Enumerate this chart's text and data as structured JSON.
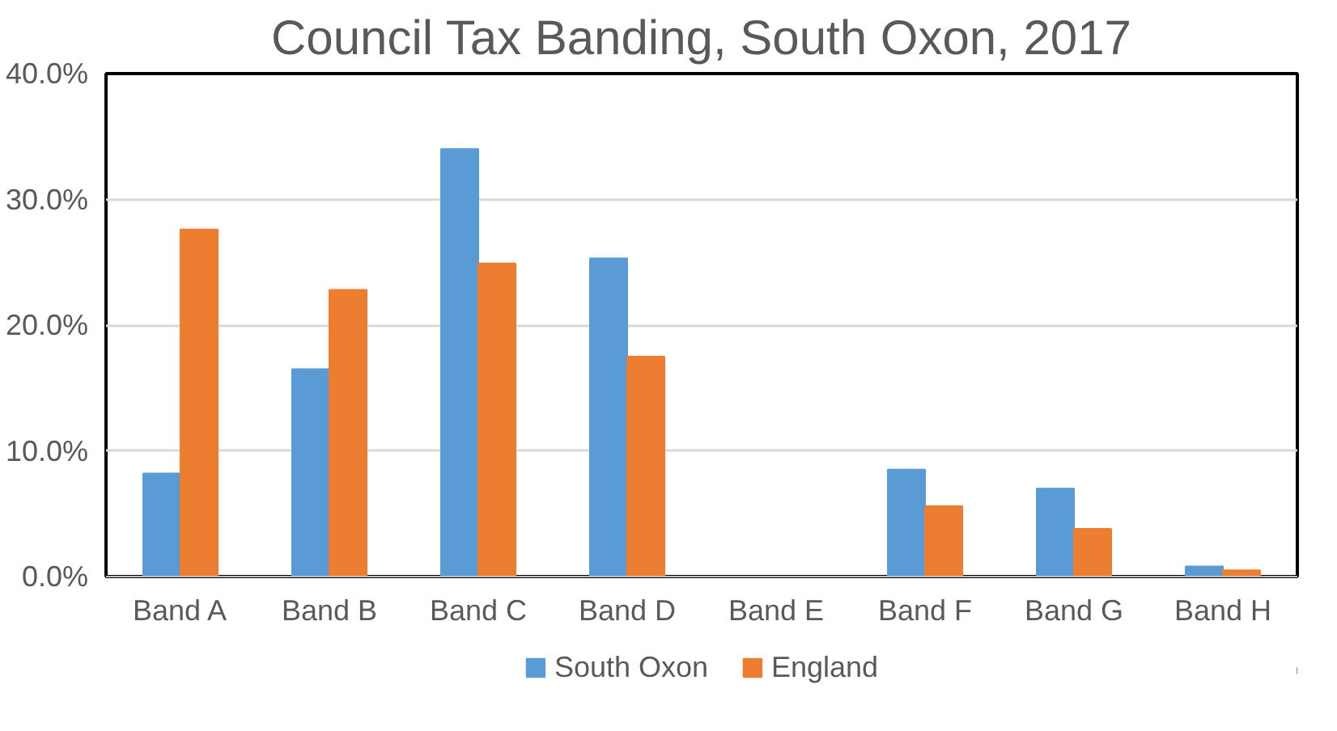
{
  "chart_data": {
    "type": "bar",
    "title": "Council Tax Banding, South Oxon, 2017",
    "categories": [
      "Band A",
      "Band B",
      "Band C",
      "Band D",
      "Band E",
      "Band F",
      "Band G",
      "Band H"
    ],
    "series": [
      {
        "name": "South Oxon",
        "color": "#5b9bd5",
        "values": [
          8.2,
          16.5,
          34.0,
          25.3,
          null,
          8.5,
          7.0,
          0.8
        ]
      },
      {
        "name": "England",
        "color": "#ed7d31",
        "values": [
          27.6,
          22.8,
          24.9,
          17.5,
          null,
          5.6,
          3.8,
          0.5
        ]
      }
    ],
    "ylim": [
      0,
      40
    ],
    "yticks": [
      {
        "value": 0,
        "label": "0.0%"
      },
      {
        "value": 10,
        "label": "10.0%"
      },
      {
        "value": 20,
        "label": "20.0%"
      },
      {
        "value": 30,
        "label": "30.0%"
      },
      {
        "value": 40,
        "label": "40.0%"
      }
    ],
    "grid": "y",
    "legend": "bottom"
  }
}
